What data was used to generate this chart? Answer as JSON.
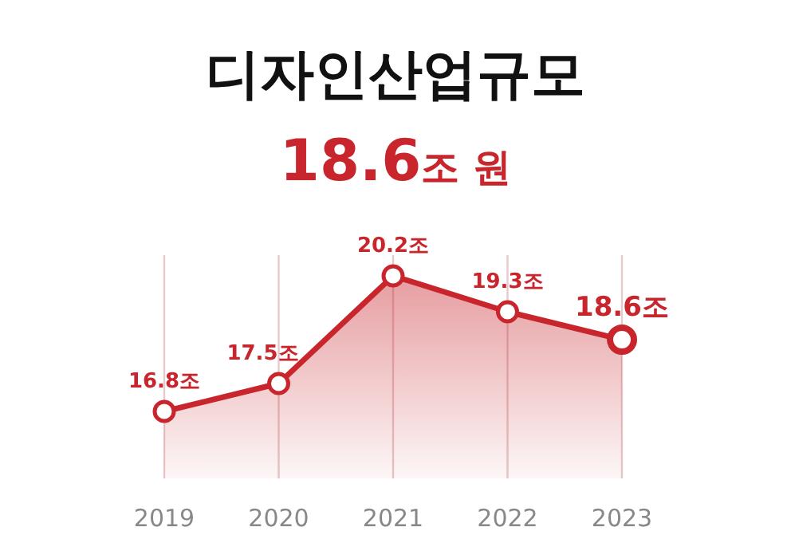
{
  "chart_data": {
    "type": "area",
    "title": "디자인산업규모",
    "subtitle": "**18.6**조 원",
    "categories": [
      "2019",
      "2020",
      "2021",
      "2022",
      "2023"
    ],
    "series": [
      {
        "color": "#c8252c",
        "values": [
          16.8,
          17.5,
          20.2,
          19.3,
          18.6
        ],
        "value_labels": [
          "16.8조",
          "17.5조",
          "20.2조",
          "19.3조",
          "18.6조"
        ]
      }
    ],
    "marker": "circle"
  }
}
